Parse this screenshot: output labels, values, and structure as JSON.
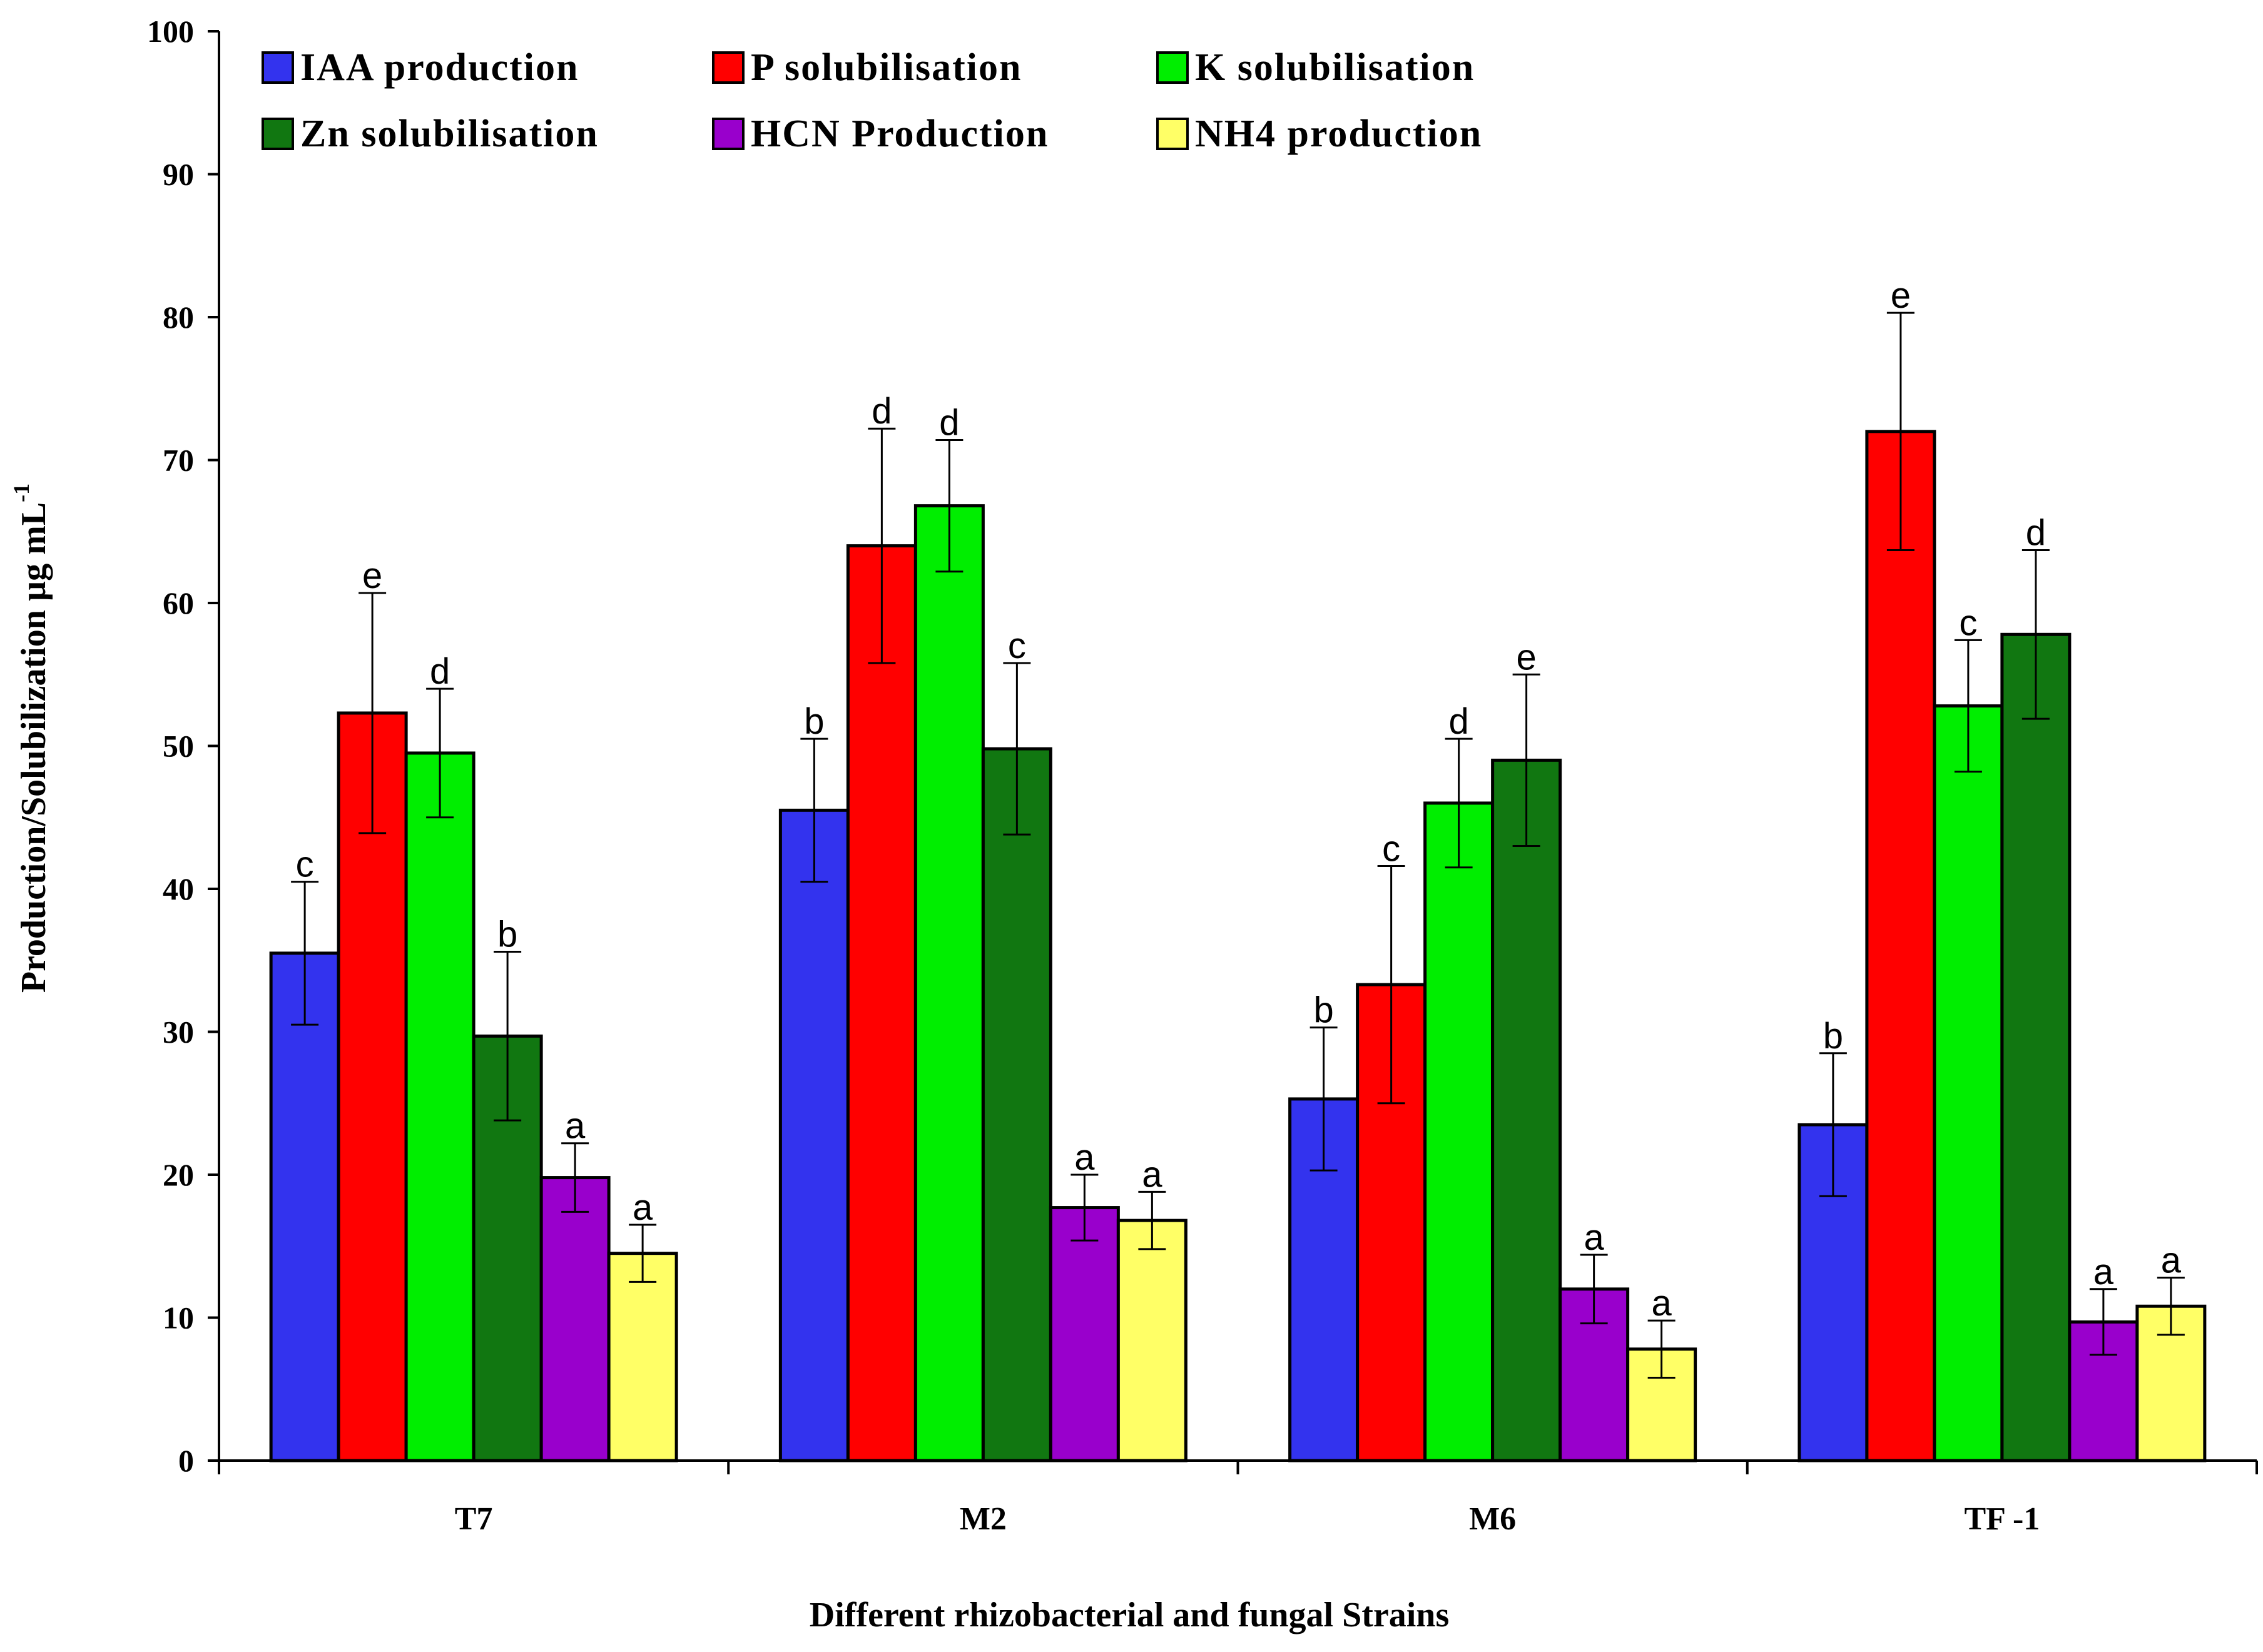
{
  "chart_data": {
    "type": "bar",
    "xlabel": "Different rhizobacterial and fungal Strains",
    "ylabel": "Production/Solubilization  µg mL",
    "ylabel_superscript": "-1",
    "ylim": [
      0,
      100
    ],
    "yticks": [
      "0",
      "10",
      "20",
      "30",
      "40",
      "50",
      "60",
      "70",
      "80",
      "90",
      "100"
    ],
    "categories": [
      "T7",
      "M2",
      "M6",
      "TF -1"
    ],
    "legend_position": "top-left",
    "series": [
      {
        "name": "IAA production",
        "color": "#3333ee",
        "values": [
          35.5,
          45.5,
          25.3,
          23.5
        ],
        "errors": [
          5.0,
          5.0,
          5.0,
          5.0
        ],
        "letters": [
          "c",
          "b",
          "b",
          "b"
        ]
      },
      {
        "name": "P solubilisation",
        "color": "#ff0000",
        "values": [
          52.3,
          64.0,
          33.3,
          72.0
        ],
        "errors": [
          8.4,
          8.2,
          8.3,
          8.3
        ],
        "letters": [
          "e",
          "d",
          "c",
          "e"
        ]
      },
      {
        "name": "K solubilisation",
        "color": "#00ee00",
        "values": [
          49.5,
          66.8,
          46.0,
          52.8
        ],
        "errors": [
          4.5,
          4.6,
          4.5,
          4.6
        ],
        "letters": [
          "d",
          "d",
          "d",
          "c"
        ]
      },
      {
        "name": "Zn solubilisation",
        "color": "#117711",
        "values": [
          29.7,
          49.8,
          49.0,
          57.8
        ],
        "errors": [
          5.9,
          6.0,
          6.0,
          5.9
        ],
        "letters": [
          "b",
          "c",
          "e",
          "d"
        ]
      },
      {
        "name": "HCN Production",
        "color": "#9900cc",
        "values": [
          19.8,
          17.7,
          12.0,
          9.7
        ],
        "errors": [
          2.4,
          2.3,
          2.4,
          2.3
        ],
        "letters": [
          "a",
          "a",
          "a",
          "a"
        ]
      },
      {
        "name": "NH4 production",
        "color": "#ffff66",
        "values": [
          14.5,
          16.8,
          7.8,
          10.8
        ],
        "errors": [
          2.0,
          2.0,
          2.0,
          2.0
        ],
        "letters": [
          "a",
          "a",
          "a",
          "a"
        ]
      }
    ]
  }
}
